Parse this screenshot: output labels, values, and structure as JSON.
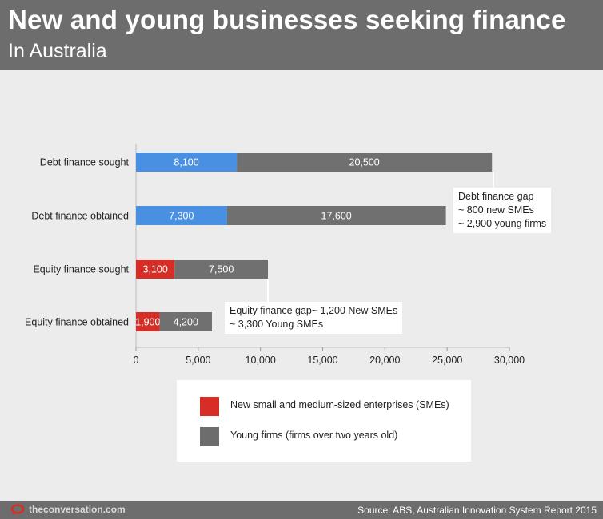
{
  "header": {
    "title": "New and young businesses seeking finance",
    "subtitle": "In Australia"
  },
  "footer": {
    "brand": "theconversation.com",
    "source": "Source:  ABS, Australian Innovation System Report 2015"
  },
  "chart_data": {
    "type": "bar",
    "orientation": "horizontal",
    "stacked": true,
    "categories": [
      "Debt finance sought",
      "Debt finance obtained",
      "Equity finance sought",
      "Equity finance obtained"
    ],
    "series": [
      {
        "values": [
          8100,
          7300,
          3100,
          1900
        ],
        "labels": [
          "8,100",
          "7,300",
          "3,100",
          "1,900"
        ],
        "colors": [
          "#4a90e2",
          "#4a90e2",
          "#d62e27",
          "#d62e27"
        ]
      },
      {
        "values": [
          20500,
          17600,
          7500,
          4200
        ],
        "labels": [
          "20,500",
          "17,600",
          "7,500",
          "4,200"
        ],
        "color": "#707070"
      }
    ],
    "xlim": [
      0,
      30000
    ],
    "xticks": [
      0,
      5000,
      10000,
      15000,
      20000,
      25000,
      30000
    ],
    "xtick_labels": [
      "0",
      "5,000",
      "10,000",
      "15,000",
      "20,000",
      "25,000",
      "30,000"
    ],
    "grid": false,
    "legend": {
      "placement": "bottom",
      "items": [
        {
          "label": "New small and medium-sized enterprises (SMEs)",
          "color": "#d62e27"
        },
        {
          "label": "Young firms (firms over two years old)",
          "color": "#6d6d6d"
        }
      ]
    },
    "annotations": [
      {
        "text": "Debt finance gap\n~ 800 new SMEs\n~ 2,900 young firms",
        "target": "Debt finance sought"
      },
      {
        "text": "Equity finance gap~ 1,200 New SMEs\n~ 3,300 Young SMEs",
        "target": "Equity finance sought"
      }
    ]
  }
}
